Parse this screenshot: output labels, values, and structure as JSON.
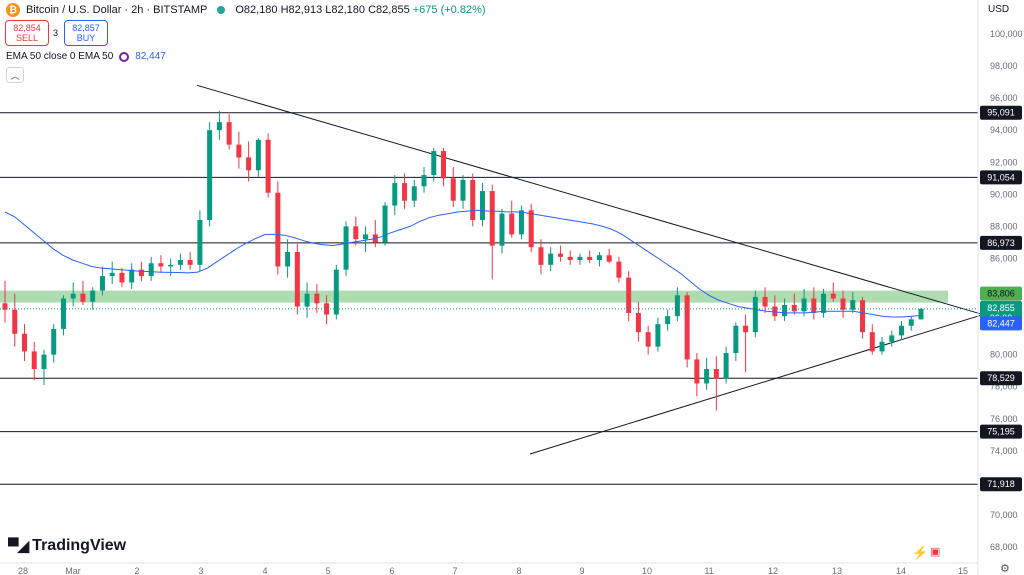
{
  "header": {
    "title": "Bitcoin / U.S. Dollar · 2h · BITSTAMP",
    "open": "O82,180",
    "high": "H82,913",
    "low": "L82,180",
    "close": "C82,855",
    "change": "+675 (+0.82%)",
    "logo_icon": "bitcoin-logo-icon"
  },
  "trade": {
    "sell_price": "82,854",
    "sell_label": "SELL",
    "spread": "3",
    "buy_price": "82,857",
    "buy_label": "BUY"
  },
  "indicator": {
    "label": "EMA 50 close 0 EMA 50",
    "value": "82,447",
    "collapse_icon": "chevron-up-icon"
  },
  "brand": {
    "name": "TradingView"
  },
  "currency": "USD",
  "chart_data": {
    "type": "candlestick",
    "y_axis_ticks": [
      "100,000",
      "98,000",
      "96,000",
      "94,000",
      "92,000",
      "90,000",
      "88,000",
      "86,000",
      "84,000",
      "82,000",
      "80,000",
      "78,000",
      "76,000",
      "74,000",
      "72,000",
      "70,000",
      "68,000"
    ],
    "x_axis_ticks": [
      "28",
      "Mar",
      "2",
      "3",
      "4",
      "5",
      "6",
      "7",
      "8",
      "9",
      "10",
      "11",
      "12",
      "13",
      "14",
      "15"
    ],
    "horizontal_levels": [
      {
        "value": 95091,
        "label": "95,091"
      },
      {
        "value": 91054,
        "label": "91,054"
      },
      {
        "value": 86973,
        "label": "86,973"
      },
      {
        "value": 78529,
        "label": "78,529"
      },
      {
        "value": 75195,
        "label": "75,195"
      },
      {
        "value": 71918,
        "label": "71,918"
      }
    ],
    "support_zone": {
      "value": 83806,
      "label": "83,806",
      "color": "#4caf50"
    },
    "current_price": {
      "value": 82855,
      "label": "82,855",
      "countdown": "06:00",
      "color": "#089981"
    },
    "ema50": {
      "value": 82447,
      "label": "82,447",
      "color": "#2962ff"
    },
    "trendlines": [
      {
        "name": "descending resistance",
        "from": {
          "x": "Mar 2 12:00",
          "y": 96800
        },
        "to": {
          "x": "Mar 15",
          "y": 82500
        }
      },
      {
        "name": "ascending support",
        "from": {
          "x": "Mar 8 04:00",
          "y": 73800
        },
        "to": {
          "x": "Mar 15",
          "y": 82500
        }
      }
    ],
    "up_color": "#089981",
    "down_color": "#f23645",
    "candles": [
      [
        83200,
        84600,
        82000,
        82800
      ],
      [
        82800,
        83800,
        80500,
        81300
      ],
      [
        81300,
        81900,
        79600,
        80200
      ],
      [
        80200,
        80800,
        78400,
        79100
      ],
      [
        79100,
        80300,
        78100,
        80000
      ],
      [
        80000,
        81900,
        79500,
        81600
      ],
      [
        81600,
        83700,
        81200,
        83500
      ],
      [
        83500,
        84500,
        83000,
        83800
      ],
      [
        83800,
        84600,
        83100,
        83300
      ],
      [
        83300,
        84200,
        82800,
        84000
      ],
      [
        84000,
        85500,
        83700,
        84900
      ],
      [
        84900,
        85800,
        84400,
        85100
      ],
      [
        85100,
        85400,
        84200,
        84500
      ],
      [
        84500,
        85700,
        84100,
        85300
      ],
      [
        85300,
        85800,
        84600,
        84900
      ],
      [
        84900,
        86100,
        84600,
        85700
      ],
      [
        85700,
        86200,
        85100,
        85500
      ],
      [
        85500,
        86000,
        84900,
        85600
      ],
      [
        85600,
        86300,
        85300,
        85900
      ],
      [
        85900,
        86400,
        85300,
        85600
      ],
      [
        85600,
        89000,
        85200,
        88400
      ],
      [
        88400,
        94500,
        88000,
        94000
      ],
      [
        94000,
        95200,
        93400,
        94500
      ],
      [
        94500,
        95000,
        92800,
        93100
      ],
      [
        93100,
        93900,
        91600,
        92300
      ],
      [
        92300,
        93300,
        90800,
        91500
      ],
      [
        91500,
        93500,
        91100,
        93400
      ],
      [
        93400,
        93800,
        89800,
        90100
      ],
      [
        90100,
        90800,
        85000,
        85500
      ],
      [
        85500,
        87200,
        84800,
        86400
      ],
      [
        86400,
        86900,
        82500,
        83000
      ],
      [
        83000,
        84500,
        82300,
        83800
      ],
      [
        83800,
        84400,
        82600,
        83200
      ],
      [
        83200,
        83700,
        81900,
        82500
      ],
      [
        82500,
        85600,
        82200,
        85300
      ],
      [
        85300,
        88300,
        84900,
        88000
      ],
      [
        88000,
        88600,
        86800,
        87200
      ],
      [
        87200,
        88000,
        86400,
        87500
      ],
      [
        87500,
        88400,
        86700,
        87000
      ],
      [
        87000,
        89500,
        86800,
        89300
      ],
      [
        89300,
        91200,
        88700,
        90700
      ],
      [
        90700,
        91300,
        89100,
        89600
      ],
      [
        89600,
        90900,
        89200,
        90500
      ],
      [
        90500,
        91700,
        90100,
        91200
      ],
      [
        91200,
        92900,
        90800,
        92700
      ],
      [
        92700,
        92900,
        90500,
        91000
      ],
      [
        91000,
        91700,
        89200,
        89600
      ],
      [
        89600,
        91200,
        89100,
        90900
      ],
      [
        90900,
        91300,
        88000,
        88400
      ],
      [
        88400,
        90700,
        88000,
        90200
      ],
      [
        90200,
        90600,
        84700,
        86800
      ],
      [
        86800,
        89100,
        86300,
        88800
      ],
      [
        88800,
        89600,
        87300,
        87500
      ],
      [
        87500,
        89300,
        87200,
        89000
      ],
      [
        89000,
        89400,
        86400,
        86700
      ],
      [
        86700,
        87200,
        85000,
        85600
      ],
      [
        85600,
        86700,
        85200,
        86300
      ],
      [
        86300,
        86800,
        85800,
        86100
      ],
      [
        86100,
        86500,
        85600,
        85900
      ],
      [
        85900,
        86300,
        85600,
        86100
      ],
      [
        86100,
        86500,
        85700,
        85900
      ],
      [
        85900,
        86400,
        85500,
        86200
      ],
      [
        86200,
        86600,
        85700,
        85800
      ],
      [
        85800,
        86100,
        84500,
        84800
      ],
      [
        84800,
        85200,
        82100,
        82600
      ],
      [
        82600,
        83300,
        80800,
        81400
      ],
      [
        81400,
        81800,
        80000,
        80500
      ],
      [
        80500,
        82300,
        80200,
        81900
      ],
      [
        81900,
        82800,
        81500,
        82400
      ],
      [
        82400,
        84200,
        82100,
        83700
      ],
      [
        83700,
        83900,
        79200,
        79700
      ],
      [
        79700,
        80100,
        77400,
        78200
      ],
      [
        78200,
        79800,
        77800,
        79100
      ],
      [
        79100,
        79900,
        76500,
        78500
      ],
      [
        78500,
        80500,
        78200,
        80100
      ],
      [
        80100,
        82000,
        79600,
        81800
      ],
      [
        81800,
        82500,
        78900,
        81400
      ],
      [
        81400,
        84000,
        81100,
        83600
      ],
      [
        83600,
        84200,
        82600,
        83000
      ],
      [
        83000,
        83700,
        82100,
        82400
      ],
      [
        82400,
        83500,
        82100,
        83100
      ],
      [
        83100,
        83800,
        82500,
        82700
      ],
      [
        82700,
        84100,
        82400,
        83500
      ],
      [
        83500,
        84200,
        82200,
        82600
      ],
      [
        82600,
        84100,
        82300,
        83800
      ],
      [
        83800,
        84500,
        83300,
        83500
      ],
      [
        83500,
        84000,
        82300,
        82800
      ],
      [
        82800,
        83900,
        82600,
        83400
      ],
      [
        83400,
        83600,
        81000,
        81400
      ],
      [
        81400,
        81900,
        80000,
        80200
      ],
      [
        80200,
        81100,
        80000,
        80800
      ],
      [
        80800,
        81500,
        80500,
        81200
      ],
      [
        81200,
        82100,
        80900,
        81800
      ],
      [
        81800,
        82400,
        81500,
        82200
      ],
      [
        82200,
        82913,
        82180,
        82855
      ]
    ],
    "ema50_series": [
      88900,
      88600,
      88100,
      87600,
      87100,
      86600,
      86200,
      85900,
      85700,
      85500,
      85400,
      85350,
      85300,
      85250,
      85200,
      85180,
      85150,
      85130,
      85120,
      85100,
      85150,
      85400,
      85800,
      86200,
      86600,
      86950,
      87250,
      87500,
      87500,
      87450,
      87300,
      87100,
      86950,
      86850,
      86800,
      86900,
      87000,
      87100,
      87200,
      87350,
      87600,
      87800,
      88000,
      88300,
      88550,
      88700,
      88800,
      88900,
      88950,
      89000,
      88950,
      88950,
      88900,
      88900,
      88850,
      88750,
      88650,
      88550,
      88450,
      88350,
      88250,
      88150,
      88000,
      87800,
      87500,
      87100,
      86700,
      86300,
      85900,
      85500,
      85100,
      84600,
      84100,
      83700,
      83400,
      83200,
      83000,
      82900,
      82800,
      82700,
      82650,
      82600,
      82600,
      82600,
      82650,
      82700,
      82700,
      82700,
      82700,
      82600,
      82500,
      82400,
      82350,
      82350,
      82400,
      82447
    ]
  }
}
